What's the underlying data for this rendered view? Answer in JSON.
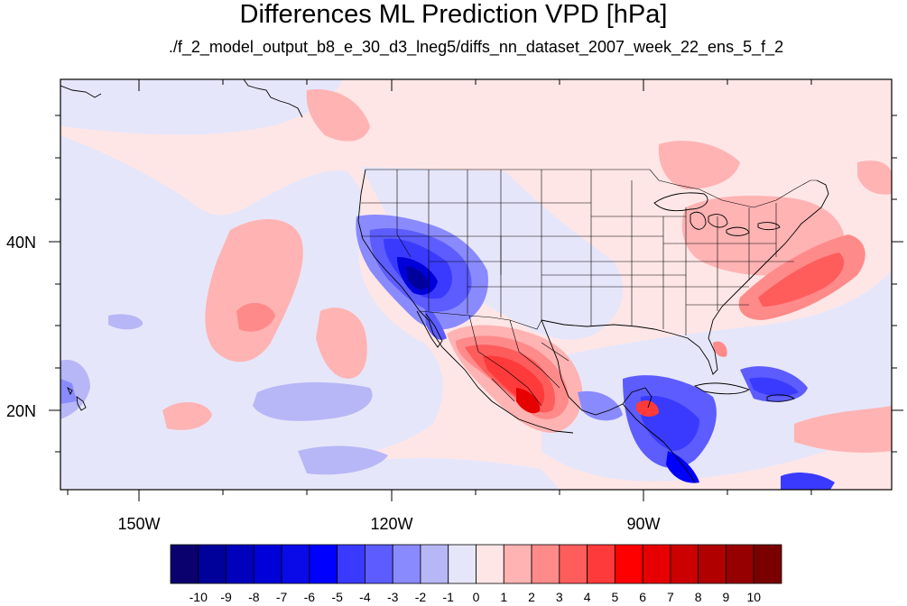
{
  "title": "Differences ML Prediction VPD [hPa]",
  "subtitle": "./f_2_model_output_b8_e_30_d3_lneg5/diffs_nn_dataset_2007_week_22_ens_5_f_2",
  "map": {
    "lon_range": [
      -159,
      -60
    ],
    "lat_range": [
      10,
      59
    ],
    "x_ticks": [
      {
        "label": "150W",
        "lon": -150
      },
      {
        "label": "120W",
        "lon": -120
      },
      {
        "label": "90W",
        "lon": -90
      }
    ],
    "y_ticks": [
      {
        "label": "40N",
        "lat": 40
      },
      {
        "label": "20N",
        "lat": 20
      }
    ]
  },
  "colorbar": {
    "labels": [
      "-10",
      "-9",
      "-8",
      "-7",
      "-6",
      "-5",
      "-4",
      "-3",
      "-2",
      "-1",
      "0",
      "1",
      "2",
      "3",
      "4",
      "5",
      "6",
      "7",
      "8",
      "9",
      "10"
    ],
    "colors": [
      "#0a006e",
      "#00009a",
      "#0000bd",
      "#0000d8",
      "#0a0ae8",
      "#0000ff",
      "#3a3aff",
      "#5c5cff",
      "#8a8aff",
      "#b7b7f7",
      "#e6e6fa",
      "#ffe6e6",
      "#ffb3b3",
      "#ff8a8a",
      "#ff5c5c",
      "#ff3a3a",
      "#ff0000",
      "#e60000",
      "#cc0000",
      "#b00000",
      "#960000",
      "#7a0000"
    ]
  }
}
